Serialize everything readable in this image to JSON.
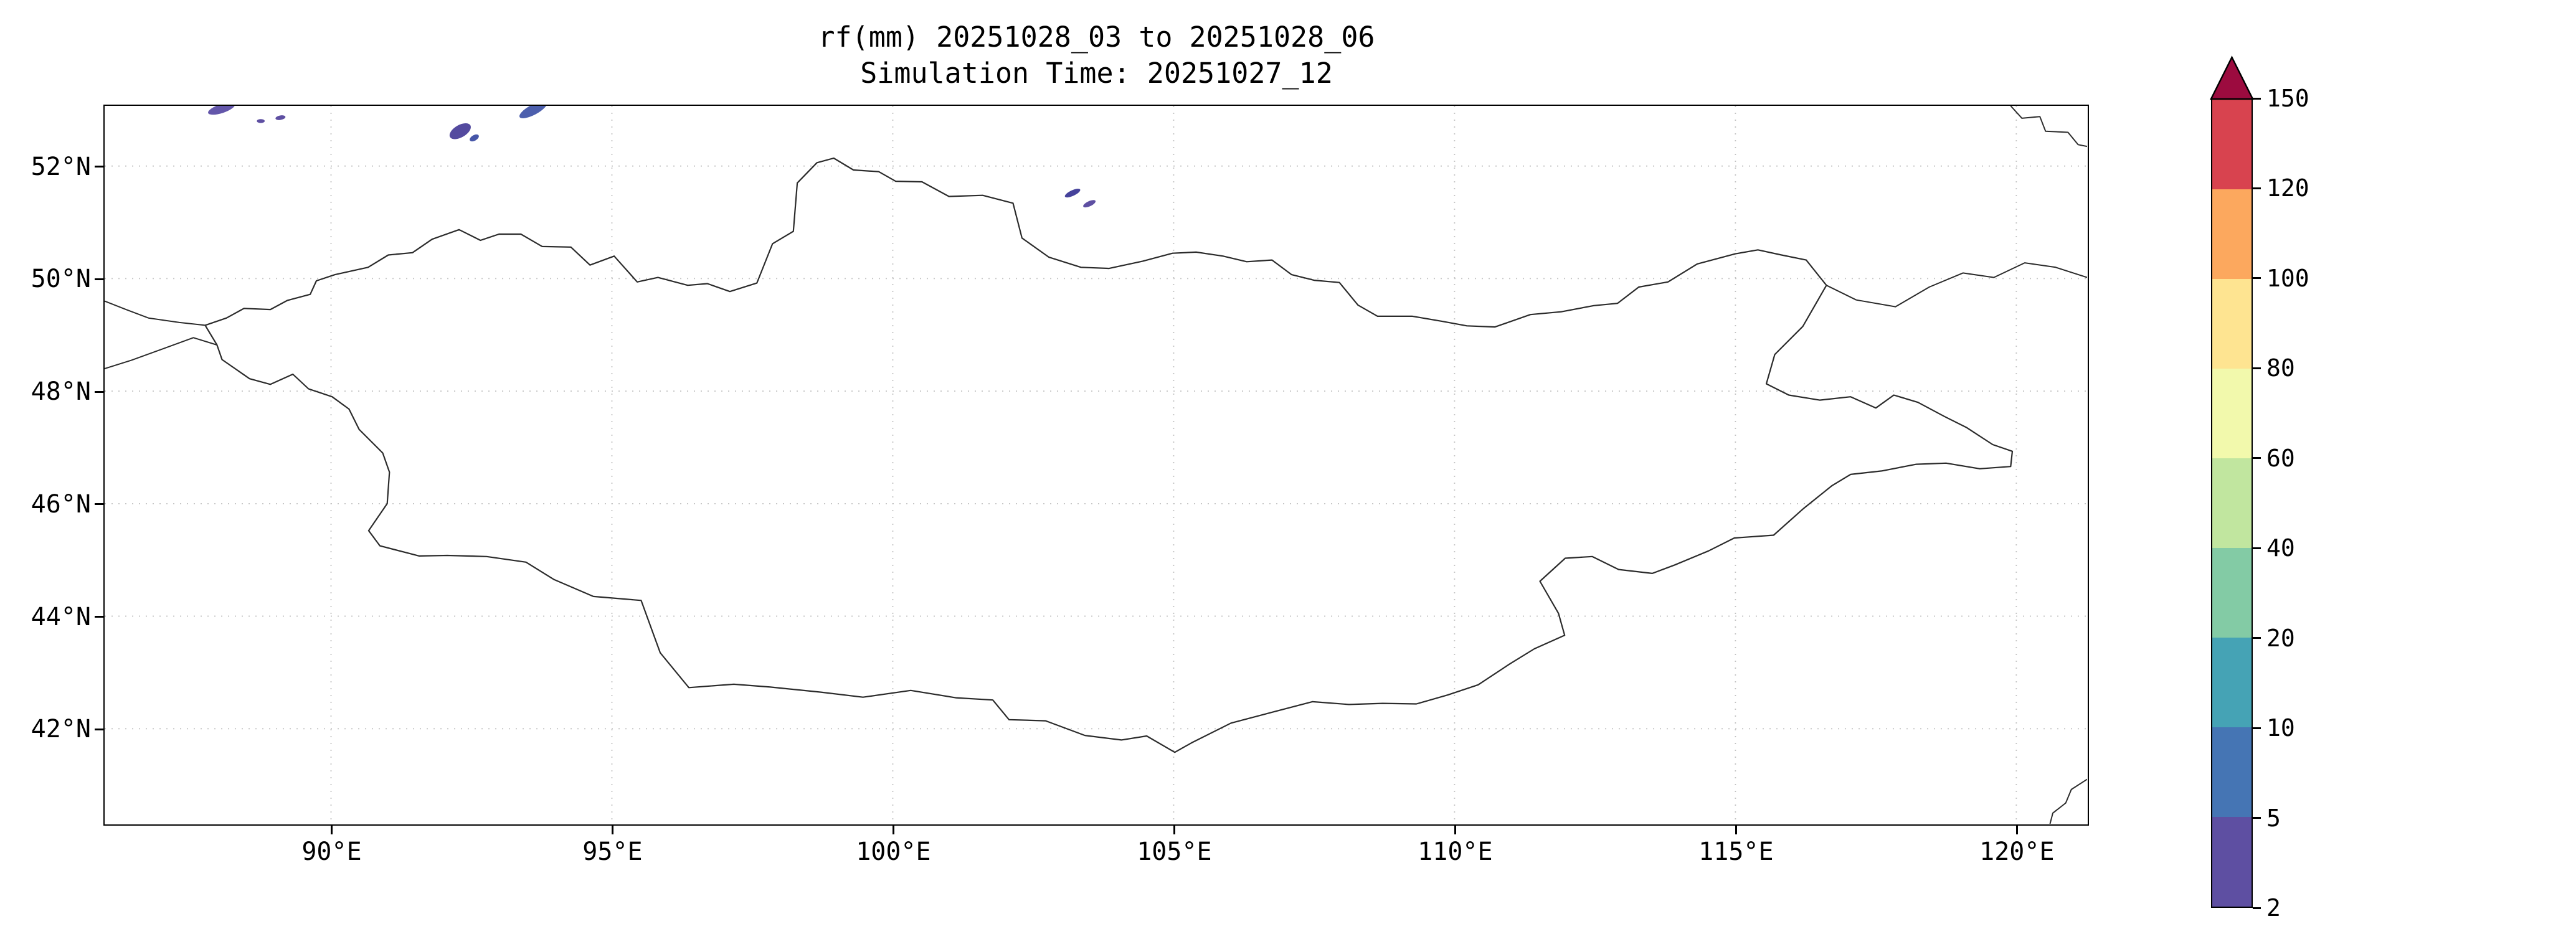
{
  "chart_data": {
    "type": "heatmap",
    "subtype": "geographic-precipitation-map",
    "title": "rf(mm) 20251028_03 to 20251028_06",
    "subtitle": "Simulation Time: 20251027_12",
    "variable": "rf",
    "units": "mm",
    "region": "Mongolia",
    "lon_range": [
      85.97,
      121.26
    ],
    "lat_range": [
      40.31,
      53.07
    ],
    "grid": "dotted",
    "x_ticks": [
      {
        "value": 90,
        "label": "90°E"
      },
      {
        "value": 95,
        "label": "95°E"
      },
      {
        "value": 100,
        "label": "100°E"
      },
      {
        "value": 105,
        "label": "105°E"
      },
      {
        "value": 110,
        "label": "110°E"
      },
      {
        "value": 115,
        "label": "115°E"
      },
      {
        "value": 120,
        "label": "120°E"
      }
    ],
    "y_ticks": [
      {
        "value": 52,
        "label": "52°N"
      },
      {
        "value": 50,
        "label": "50°N"
      },
      {
        "value": 48,
        "label": "48°N"
      },
      {
        "value": 46,
        "label": "46°N"
      },
      {
        "value": 44,
        "label": "44°N"
      },
      {
        "value": 42,
        "label": "42°N"
      }
    ],
    "colorbar": {
      "orientation": "vertical",
      "levels": [
        2,
        5,
        10,
        20,
        40,
        60,
        80,
        100,
        120,
        150
      ],
      "segment_colors": [
        "#5e4fa2",
        "#4575b4",
        "#45a3b5",
        "#83cba5",
        "#c1e69f",
        "#f2f9ac",
        "#fee491",
        "#fca85e",
        "#d8434f"
      ],
      "over_color": "#9c0b3f",
      "outline_color": "#000000"
    },
    "map_outline": {
      "mongolia": [
        [
          87.76,
          49.17
        ],
        [
          88.14,
          49.3
        ],
        [
          88.45,
          49.47
        ],
        [
          88.92,
          49.45
        ],
        [
          89.22,
          49.61
        ],
        [
          89.63,
          49.72
        ],
        [
          89.74,
          49.96
        ],
        [
          90.07,
          50.07
        ],
        [
          90.66,
          50.2
        ],
        [
          91.02,
          50.42
        ],
        [
          91.45,
          50.46
        ],
        [
          91.8,
          50.7
        ],
        [
          92.28,
          50.87
        ],
        [
          92.66,
          50.68
        ],
        [
          92.99,
          50.79
        ],
        [
          93.38,
          50.79
        ],
        [
          93.76,
          50.57
        ],
        [
          94.27,
          50.56
        ],
        [
          94.61,
          50.24
        ],
        [
          95.04,
          50.4
        ],
        [
          95.45,
          49.94
        ],
        [
          95.82,
          50.02
        ],
        [
          96.35,
          49.88
        ],
        [
          96.7,
          49.91
        ],
        [
          97.1,
          49.77
        ],
        [
          97.58,
          49.92
        ],
        [
          97.86,
          50.62
        ],
        [
          98.23,
          50.84
        ],
        [
          98.3,
          51.7
        ],
        [
          98.65,
          52.06
        ],
        [
          98.95,
          52.14
        ],
        [
          99.3,
          51.93
        ],
        [
          99.75,
          51.9
        ],
        [
          100.05,
          51.73
        ],
        [
          100.52,
          51.72
        ],
        [
          101.0,
          51.46
        ],
        [
          101.6,
          51.48
        ],
        [
          102.14,
          51.34
        ],
        [
          102.3,
          50.72
        ],
        [
          102.78,
          50.38
        ],
        [
          103.35,
          50.2
        ],
        [
          103.85,
          50.18
        ],
        [
          104.45,
          50.31
        ],
        [
          104.98,
          50.45
        ],
        [
          105.4,
          50.47
        ],
        [
          105.88,
          50.4
        ],
        [
          106.3,
          50.3
        ],
        [
          106.75,
          50.33
        ],
        [
          107.1,
          50.07
        ],
        [
          107.5,
          49.97
        ],
        [
          107.95,
          49.93
        ],
        [
          108.28,
          49.53
        ],
        [
          108.63,
          49.33
        ],
        [
          109.25,
          49.33
        ],
        [
          109.78,
          49.24
        ],
        [
          110.22,
          49.16
        ],
        [
          110.72,
          49.14
        ],
        [
          111.35,
          49.36
        ],
        [
          111.9,
          49.41
        ],
        [
          112.48,
          49.52
        ],
        [
          112.9,
          49.56
        ],
        [
          113.28,
          49.85
        ],
        [
          113.8,
          49.94
        ],
        [
          114.32,
          50.26
        ],
        [
          115.0,
          50.44
        ],
        [
          115.4,
          50.51
        ],
        [
          115.82,
          50.42
        ],
        [
          116.26,
          50.33
        ],
        [
          116.62,
          49.88
        ],
        [
          116.2,
          49.15
        ],
        [
          115.7,
          48.65
        ],
        [
          115.55,
          48.13
        ],
        [
          115.95,
          47.93
        ],
        [
          116.5,
          47.84
        ],
        [
          117.05,
          47.9
        ],
        [
          117.5,
          47.7
        ],
        [
          117.82,
          47.93
        ],
        [
          118.25,
          47.8
        ],
        [
          118.72,
          47.55
        ],
        [
          119.12,
          47.35
        ],
        [
          119.58,
          47.05
        ],
        [
          119.93,
          46.93
        ],
        [
          119.9,
          46.66
        ],
        [
          119.35,
          46.62
        ],
        [
          118.75,
          46.72
        ],
        [
          118.22,
          46.7
        ],
        [
          117.6,
          46.58
        ],
        [
          117.05,
          46.52
        ],
        [
          116.72,
          46.32
        ],
        [
          116.22,
          45.92
        ],
        [
          115.68,
          45.44
        ],
        [
          114.98,
          45.39
        ],
        [
          114.52,
          45.16
        ],
        [
          113.92,
          44.91
        ],
        [
          113.52,
          44.76
        ],
        [
          112.92,
          44.83
        ],
        [
          112.45,
          45.06
        ],
        [
          111.97,
          45.03
        ],
        [
          111.52,
          44.62
        ],
        [
          111.85,
          44.05
        ],
        [
          111.96,
          43.66
        ],
        [
          111.42,
          43.42
        ],
        [
          110.98,
          43.15
        ],
        [
          110.42,
          42.78
        ],
        [
          109.88,
          42.6
        ],
        [
          109.32,
          42.44
        ],
        [
          108.72,
          42.45
        ],
        [
          108.12,
          42.43
        ],
        [
          107.47,
          42.48
        ],
        [
          106.78,
          42.3
        ],
        [
          106.02,
          42.1
        ],
        [
          105.32,
          41.75
        ],
        [
          105.02,
          41.58
        ],
        [
          104.52,
          41.87
        ],
        [
          104.07,
          41.8
        ],
        [
          103.42,
          41.88
        ],
        [
          102.72,
          42.14
        ],
        [
          102.07,
          42.16
        ],
        [
          101.78,
          42.51
        ],
        [
          101.12,
          42.55
        ],
        [
          100.32,
          42.68
        ],
        [
          99.47,
          42.56
        ],
        [
          98.72,
          42.65
        ],
        [
          97.82,
          42.74
        ],
        [
          97.17,
          42.79
        ],
        [
          96.37,
          42.73
        ],
        [
          95.86,
          43.35
        ],
        [
          95.52,
          44.28
        ],
        [
          94.67,
          44.35
        ],
        [
          93.97,
          44.65
        ],
        [
          93.47,
          44.96
        ],
        [
          92.77,
          45.06
        ],
        [
          92.07,
          45.08
        ],
        [
          91.57,
          45.07
        ],
        [
          90.87,
          45.25
        ],
        [
          90.67,
          45.52
        ],
        [
          91.0,
          46.0
        ],
        [
          91.04,
          46.56
        ],
        [
          90.92,
          46.9
        ],
        [
          90.5,
          47.32
        ],
        [
          90.32,
          47.68
        ],
        [
          90.02,
          47.9
        ],
        [
          89.6,
          48.04
        ],
        [
          89.32,
          48.3
        ],
        [
          88.92,
          48.12
        ],
        [
          88.55,
          48.22
        ],
        [
          88.06,
          48.56
        ],
        [
          87.97,
          48.82
        ],
        [
          87.76,
          49.17
        ]
      ],
      "neighbor_borders": [
        [
          [
            85.97,
            49.6
          ],
          [
            86.35,
            49.45
          ],
          [
            86.75,
            49.3
          ],
          [
            87.3,
            49.22
          ],
          [
            87.76,
            49.17
          ]
        ],
        [
          [
            85.97,
            48.4
          ],
          [
            86.45,
            48.55
          ],
          [
            87.0,
            48.75
          ],
          [
            87.55,
            48.95
          ],
          [
            87.97,
            48.82
          ]
        ],
        [
          [
            116.62,
            49.88
          ],
          [
            117.15,
            49.62
          ],
          [
            117.85,
            49.5
          ],
          [
            118.45,
            49.85
          ],
          [
            119.05,
            50.1
          ],
          [
            119.6,
            50.02
          ],
          [
            120.15,
            50.28
          ],
          [
            120.7,
            50.2
          ],
          [
            121.26,
            50.02
          ]
        ],
        [
          [
            119.9,
            53.07
          ],
          [
            120.1,
            52.85
          ],
          [
            120.42,
            52.88
          ],
          [
            120.52,
            52.62
          ],
          [
            120.92,
            52.6
          ],
          [
            121.1,
            52.38
          ],
          [
            121.26,
            52.35
          ]
        ],
        [
          [
            121.26,
            41.1
          ],
          [
            120.98,
            40.92
          ],
          [
            120.88,
            40.68
          ],
          [
            120.65,
            40.5
          ],
          [
            120.6,
            40.31
          ]
        ]
      ]
    },
    "precipitation_patches": [
      {
        "lon": 88.05,
        "lat": 53.02,
        "w": 0.5,
        "h": 0.16,
        "rot": -18,
        "value_range": "2-5",
        "color": "#6356aa"
      },
      {
        "lon": 88.75,
        "lat": 52.8,
        "w": 0.14,
        "h": 0.07,
        "rot": 0,
        "value_range": "2-5",
        "color": "#5e4fa2"
      },
      {
        "lon": 89.1,
        "lat": 52.86,
        "w": 0.18,
        "h": 0.08,
        "rot": -10,
        "value_range": "2-5",
        "color": "#5e4fa2"
      },
      {
        "lon": 92.3,
        "lat": 52.62,
        "w": 0.42,
        "h": 0.22,
        "rot": -30,
        "value_range": "2-5",
        "color": "#544a9f"
      },
      {
        "lon": 92.55,
        "lat": 52.5,
        "w": 0.18,
        "h": 0.1,
        "rot": -30,
        "value_range": "5-10",
        "color": "#4656a8"
      },
      {
        "lon": 93.6,
        "lat": 53.0,
        "w": 0.55,
        "h": 0.18,
        "rot": -28,
        "value_range": "5-10",
        "color": "#4c5fad"
      },
      {
        "lon": 103.2,
        "lat": 51.52,
        "w": 0.3,
        "h": 0.1,
        "rot": -25,
        "value_range": "5-10",
        "color": "#45429b"
      },
      {
        "lon": 103.5,
        "lat": 51.33,
        "w": 0.24,
        "h": 0.09,
        "rot": -25,
        "value_range": "2-5",
        "color": "#5e4fa2"
      }
    ]
  }
}
